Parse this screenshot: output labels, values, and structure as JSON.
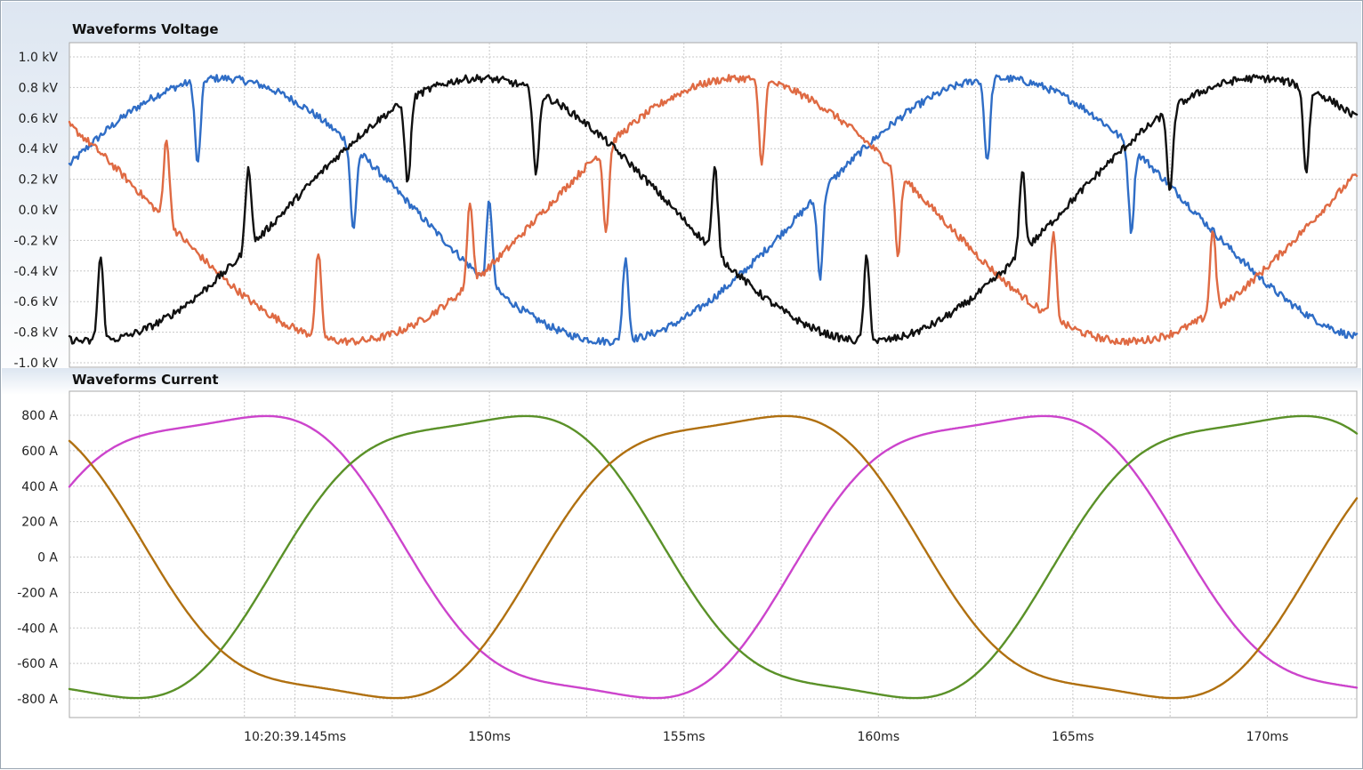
{
  "chart_data": [
    {
      "type": "line",
      "title": "Waveforms Voltage",
      "ylim": [
        -1.0,
        1.0
      ],
      "y_ticks": [
        "1.0 kV",
        "0.8 kV",
        "0.6 kV",
        "0.4 kV",
        "0.2 kV",
        "0.0 kV",
        "-0.2 kV",
        "-0.4 kV",
        "-0.6 kV",
        "-0.8 kV",
        "-1.0 kV"
      ],
      "y_tick_values": [
        1.0,
        0.8,
        0.6,
        0.4,
        0.2,
        0.0,
        -0.2,
        -0.4,
        -0.6,
        -0.8,
        -1.0
      ],
      "xlim_ms": [
        139.2,
        172.3
      ],
      "x_grid_ms": [
        141,
        143.7,
        145,
        147.5,
        150,
        152.5,
        155,
        157.5,
        160,
        162.5,
        165,
        167.5,
        170
      ],
      "grid": true,
      "series": [
        {
          "color": "#2f6dc6",
          "amplitude": 0.86,
          "phase_deg": 20,
          "values_desc": "sampled from sine fit",
          "spike_times_ms": [
            142.5,
            146.5,
            150.0,
            153.5,
            158.5,
            162.8,
            166.5
          ]
        },
        {
          "color": "#df6a43",
          "amplitude": 0.86,
          "phase_deg": 140,
          "spike_times_ms": [
            141.7,
            145.6,
            149.5,
            153.0,
            157.0,
            160.5,
            164.5,
            168.6
          ]
        },
        {
          "color": "#111111",
          "amplitude": 0.86,
          "phase_deg": 260,
          "spike_times_ms": [
            140.0,
            143.8,
            147.9,
            151.2,
            155.8,
            159.7,
            163.7,
            167.5,
            171.0
          ]
        }
      ],
      "period_ms": 20
    },
    {
      "type": "line",
      "title": "Waveforms Current",
      "ylim": [
        -900,
        900
      ],
      "y_ticks": [
        "800 A",
        "600 A",
        "400 A",
        "200 A",
        "0 A",
        "-200 A",
        "-400 A",
        "-600 A",
        "-800 A"
      ],
      "y_tick_values": [
        800,
        600,
        400,
        200,
        0,
        -200,
        -400,
        -600,
        -800
      ],
      "x_tick_labels": [
        "10:20:39.145ms",
        "150ms",
        "155ms",
        "160ms",
        "165ms",
        "170ms"
      ],
      "x_tick_ms": [
        145,
        150,
        155,
        160,
        165,
        170
      ],
      "xlim_ms": [
        139.2,
        172.3
      ],
      "grid": true,
      "period_ms": 20,
      "series": [
        {
          "color": "#cc44cc",
          "amplitude": 860,
          "phase_deg": 20
        },
        {
          "color": "#5a9128",
          "amplitude": 860,
          "phase_deg": 260
        },
        {
          "color": "#b07010",
          "amplitude": 860,
          "phase_deg": 140
        }
      ]
    }
  ]
}
